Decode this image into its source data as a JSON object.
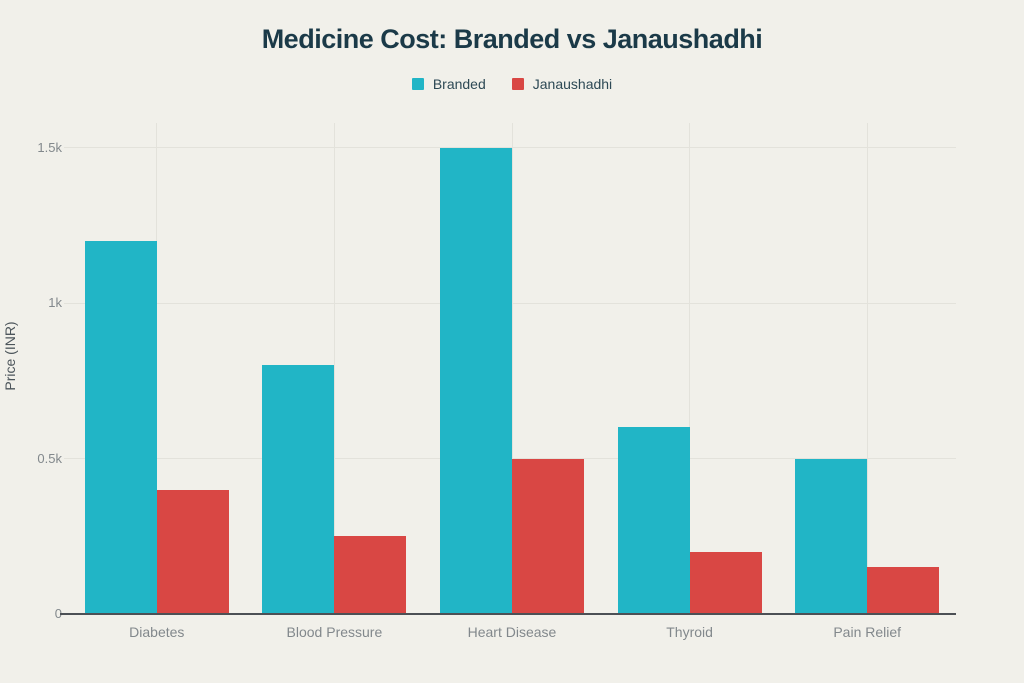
{
  "chart_data": {
    "type": "bar",
    "title": "Medicine Cost: Branded vs Janaushadhi",
    "ylabel": "Price (INR)",
    "xlabel": "",
    "categories": [
      "Diabetes",
      "Blood Pressure",
      "Heart Disease",
      "Thyroid",
      "Pain Relief"
    ],
    "series": [
      {
        "name": "Branded",
        "color": "#21b5c6",
        "values": [
          1200,
          800,
          1500,
          600,
          500
        ]
      },
      {
        "name": "Janaushadhi",
        "color": "#d94744",
        "values": [
          400,
          250,
          500,
          200,
          150
        ]
      }
    ],
    "yticks": [
      {
        "value": 0,
        "label": "0"
      },
      {
        "value": 500,
        "label": "0.5k"
      },
      {
        "value": 1000,
        "label": "1k"
      },
      {
        "value": 1500,
        "label": "1.5k"
      }
    ],
    "ylim": [
      0,
      1580
    ],
    "grid": true,
    "legend_position": "top",
    "theme": {
      "background": "#f1f0ea",
      "title_color": "#1b3a48",
      "legend_text_color": "#2d4955",
      "grid_color": "#e3e2db",
      "tick_text_color": "#82888c",
      "axis_line_color": "#4c5055",
      "ylabel_color": "#4c555b"
    }
  }
}
